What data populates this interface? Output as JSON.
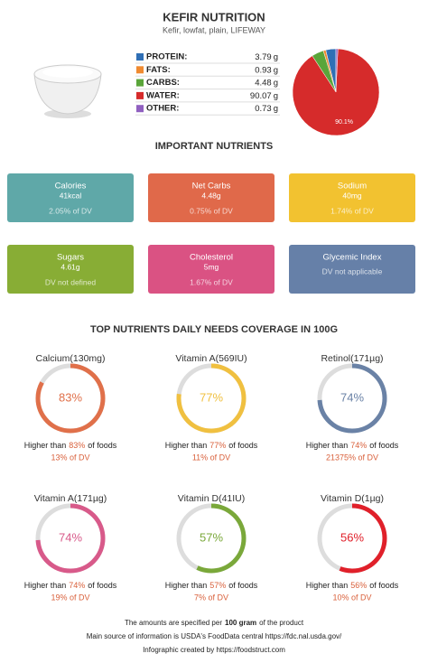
{
  "header": {
    "title": "KEFIR NUTRITION",
    "subtitle": "Kefir, lowfat, plain, LIFEWAY"
  },
  "macros": {
    "unit": "g",
    "rows": [
      {
        "label": "PROTEIN:",
        "value": 3.79,
        "color": "#2f6fb5"
      },
      {
        "label": "FATS:",
        "value": 0.93,
        "color": "#f08a30"
      },
      {
        "label": "CARBS:",
        "value": 4.48,
        "color": "#5aa53a"
      },
      {
        "label": "WATER:",
        "value": 90.07,
        "color": "#d62b2b"
      },
      {
        "label": "OTHER:",
        "value": 0.73,
        "color": "#9060c0"
      }
    ],
    "pie_label": "90.1%"
  },
  "nutrients": {
    "title": "IMPORTANT NUTRIENTS",
    "cards": [
      {
        "name": "Calories",
        "amount": "41kcal",
        "dv": "2.05% of DV",
        "color": "#5fa8a8"
      },
      {
        "name": "Net Carbs",
        "amount": "4.48g",
        "dv": "0.75% of DV",
        "color": "#e0694a"
      },
      {
        "name": "Sodium",
        "amount": "40mg",
        "dv": "1.74% of DV",
        "color": "#f2c230"
      },
      {
        "name": "Sugars",
        "amount": "4.61g",
        "dv": "DV not defined",
        "color": "#88ad35"
      },
      {
        "name": "Cholesterol",
        "amount": "5mg",
        "dv": "1.67% of DV",
        "color": "#da5283"
      },
      {
        "name": "Glycemic Index",
        "dv": "DV not applicable",
        "color": "#6680a8"
      }
    ]
  },
  "coverage": {
    "title": "TOP NUTRIENTS DAILY NEEDS COVERAGE IN 100G",
    "higher_prefix": "Higher than",
    "higher_suffix": "of foods",
    "rings": [
      {
        "name": "Calcium(130mg)",
        "percent": {
          "value": 83,
          "label": "83%"
        },
        "dv": "13% of DV",
        "color": "#e0704a"
      },
      {
        "name": "Vitamin A(569IU)",
        "percent": {
          "value": 77,
          "label": "77%"
        },
        "dv": "11% of DV",
        "color": "#f0c040"
      },
      {
        "name": "Retinol(171µg)",
        "percent": {
          "value": 74,
          "label": "74%"
        },
        "dv": "21375% of DV",
        "color": "#6a82a6"
      },
      {
        "name": "Vitamin A(171µg)",
        "percent": {
          "value": 74,
          "label": "74%"
        },
        "dv": "19% of DV",
        "color": "#d85a8a"
      },
      {
        "name": "Vitamin D(41IU)",
        "percent": {
          "value": 57,
          "label": "57%"
        },
        "dv": "7% of DV",
        "color": "#7aa83a"
      },
      {
        "name": "Vitamin D(1µg)",
        "percent": {
          "value": 56,
          "label": "56%"
        },
        "dv": "10% of DV",
        "color": "#e0202a"
      }
    ]
  },
  "footer": {
    "line1_prefix": "The amounts are specified per",
    "line1_bold": "100 gram",
    "line1_suffix": "of the product",
    "source": "Main source of information is USDA's FoodData central https://fdc.nal.usda.gov/",
    "credit": "Infographic created by https://foodstruct.com"
  }
}
